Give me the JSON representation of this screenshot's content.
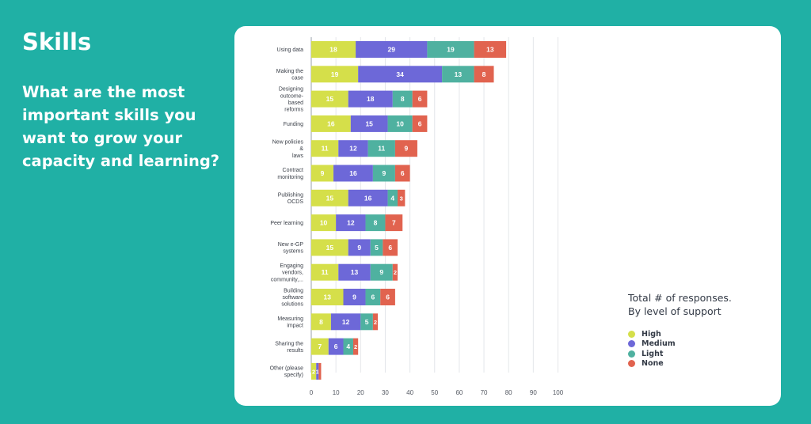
{
  "header": {
    "title": "Skills",
    "question": "What are the most important skills you want to grow your capacity and learning?"
  },
  "legend": {
    "title_line1": "Total # of responses.",
    "title_line2": "By level of support",
    "items": [
      {
        "label": "High",
        "color": "#d5df4a"
      },
      {
        "label": "Medium",
        "color": "#6d68d8"
      },
      {
        "label": "Light",
        "color": "#4fb1a0"
      },
      {
        "label": "None",
        "color": "#e1634f"
      }
    ]
  },
  "chart_data": {
    "type": "bar",
    "orientation": "horizontal",
    "stacked": true,
    "categories": [
      "Using data",
      "Making the case",
      "Designing outcome-based reforms",
      "Funding",
      "New policies & laws",
      "Contract monitoring",
      "Publishing OCDS",
      "Peer learning",
      "New e-GP systems",
      "Engaging vendors, community,...",
      "Building software solutions",
      "Measuring impact",
      "Sharing the results",
      "Other (please specify)"
    ],
    "category_lines": [
      [
        "Using data"
      ],
      [
        "Making the",
        "case"
      ],
      [
        "Designing",
        "outcome-",
        "based",
        "reforms"
      ],
      [
        "Funding"
      ],
      [
        "New policies",
        "&",
        "laws"
      ],
      [
        "Contract",
        "monitoring"
      ],
      [
        "Publishing",
        "OCDS"
      ],
      [
        "Peer learning"
      ],
      [
        "New e-GP",
        "systems"
      ],
      [
        "Engaging",
        "vendors,",
        "community,..."
      ],
      [
        "Building",
        "software",
        "solutions"
      ],
      [
        "Measuring",
        "impact"
      ],
      [
        "Sharing the",
        "results"
      ],
      [
        "Other (please",
        "specify)"
      ]
    ],
    "series": [
      {
        "name": "High",
        "color": "#d5df4a",
        "values": [
          18,
          19,
          15,
          16,
          11,
          9,
          15,
          10,
          15,
          11,
          13,
          8,
          7,
          2
        ]
      },
      {
        "name": "Medium",
        "color": "#6d68d8",
        "values": [
          29,
          34,
          18,
          15,
          12,
          16,
          16,
          12,
          9,
          13,
          9,
          12,
          6,
          1
        ]
      },
      {
        "name": "Light",
        "color": "#4fb1a0",
        "values": [
          19,
          13,
          8,
          10,
          11,
          9,
          4,
          8,
          5,
          9,
          6,
          5,
          4,
          0
        ]
      },
      {
        "name": "None",
        "color": "#e1634f",
        "values": [
          13,
          8,
          6,
          6,
          9,
          6,
          3,
          7,
          6,
          2,
          6,
          2,
          2,
          1
        ]
      }
    ],
    "value_labels": [
      [
        "18",
        "29",
        "19",
        "13"
      ],
      [
        "19",
        "34",
        "13",
        "8"
      ],
      [
        "15",
        "18",
        "8",
        "6"
      ],
      [
        "16",
        "15",
        "10",
        "6"
      ],
      [
        "11",
        "12",
        "11",
        "9"
      ],
      [
        "9",
        "16",
        "9",
        "6"
      ],
      [
        "15",
        "16",
        "4",
        "3"
      ],
      [
        "10",
        "12",
        "8",
        "7"
      ],
      [
        "15",
        "9",
        "5",
        "6"
      ],
      [
        "11",
        "13",
        "9",
        "2"
      ],
      [
        "13",
        "9",
        "6",
        "6"
      ],
      [
        "8",
        "12",
        "5",
        "2"
      ],
      [
        "7",
        "6",
        "4",
        "2"
      ],
      [
        "2",
        "1",
        "",
        ""
      ]
    ],
    "x_ticks": [
      "0",
      "10",
      "20",
      "30",
      "40",
      "50",
      "60",
      "70",
      "80",
      "90",
      "100"
    ],
    "xlim": [
      0,
      100
    ],
    "grid": true,
    "legend_position": "right"
  }
}
